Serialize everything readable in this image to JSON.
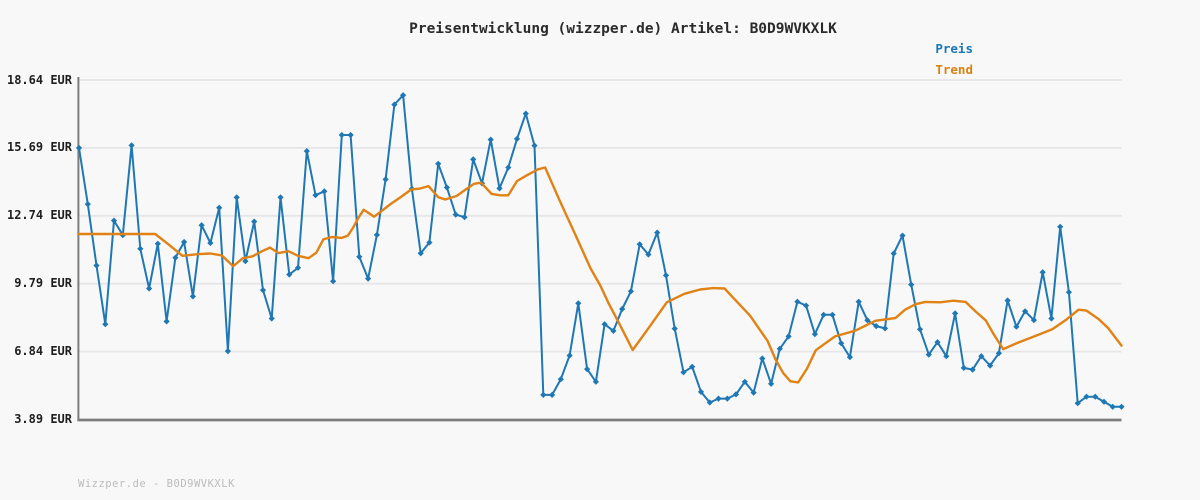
{
  "title": "Preisentwicklung (wizzper.de) Artikel: B0D9WVKXLK",
  "legend": {
    "price_label": "Preis",
    "trend_label": "Trend"
  },
  "footer": "Wizzper.de - B0D9WVKXLK",
  "colors": {
    "price": "#1f77b4",
    "trend": "#e08214",
    "price_text": "#1777b8",
    "trend_text": "#da820e",
    "grid": "#e6e6e8",
    "axis": "#7d7d7d",
    "background": "#f8f8f9"
  },
  "y_axis": {
    "unit": "EUR",
    "tick_labels": [
      "18.64 EUR",
      "15.69 EUR",
      "12.74 EUR",
      "9.79 EUR",
      "6.84 EUR",
      "3.89 EUR"
    ],
    "tick_values": [
      18.64,
      15.69,
      12.74,
      9.79,
      6.84,
      3.89
    ]
  },
  "chart_data": {
    "type": "line",
    "title": "Preisentwicklung (wizzper.de) Artikel: B0D9WVKXLK",
    "xlabel": "",
    "ylabel": "EUR",
    "ylim": [
      3.89,
      18.64
    ],
    "grid": "horizontal",
    "legend_position": "top-right",
    "x_tick_labels_visible": false,
    "series": [
      {
        "name": "Preis",
        "style": "line-with-diamond-markers",
        "values": [
          15.69,
          13.25,
          10.58,
          8.03,
          12.53,
          11.9,
          15.8,
          11.31,
          9.58,
          11.53,
          8.15,
          10.92,
          11.6,
          9.24,
          12.33,
          11.56,
          13.09,
          6.86,
          13.54,
          10.77,
          12.49,
          9.51,
          8.28,
          13.54,
          10.19,
          10.48,
          15.55,
          13.64,
          13.8,
          9.9,
          16.25,
          16.25,
          10.96,
          10.01,
          11.91,
          14.32,
          17.57,
          17.98,
          13.91,
          11.11,
          11.58,
          15.0,
          13.97,
          12.79,
          12.68,
          15.19,
          14.15,
          16.05,
          13.93,
          14.84,
          16.08,
          17.18,
          15.79,
          4.96,
          4.96,
          5.64,
          6.67,
          8.94,
          6.08,
          5.53,
          8.03,
          7.74,
          8.69,
          9.46,
          11.5,
          11.06,
          12.01,
          10.15,
          7.84,
          5.94,
          6.18,
          5.09,
          4.63,
          4.8,
          4.8,
          4.98,
          5.53,
          5.06,
          6.54,
          5.44,
          6.96,
          7.5,
          9.01,
          8.84,
          7.6,
          8.44,
          8.44,
          7.2,
          6.6,
          9.01,
          8.2,
          7.95,
          7.85,
          11.1,
          11.88,
          9.75,
          7.81,
          6.71,
          7.25,
          6.64,
          8.5,
          6.13,
          6.06,
          6.64,
          6.23,
          6.77,
          9.06,
          7.92,
          8.59,
          8.21,
          10.29,
          8.28,
          12.26,
          9.42,
          4.6,
          4.88,
          4.88,
          4.66,
          4.44,
          4.44
        ]
      },
      {
        "name": "Trend",
        "style": "smooth-line",
        "keypoints": [
          [
            0,
            11.95
          ],
          [
            8.7,
            11.95
          ],
          [
            10.2,
            11.5
          ],
          [
            11.8,
            11.0
          ],
          [
            13.5,
            11.07
          ],
          [
            15.0,
            11.1
          ],
          [
            16.3,
            11.02
          ],
          [
            17.6,
            10.55
          ],
          [
            18.7,
            10.9
          ],
          [
            19.8,
            10.98
          ],
          [
            20.9,
            11.2
          ],
          [
            21.8,
            11.36
          ],
          [
            22.8,
            11.12
          ],
          [
            23.9,
            11.2
          ],
          [
            25.0,
            11.0
          ],
          [
            26.2,
            10.9
          ],
          [
            27.1,
            11.14
          ],
          [
            27.9,
            11.72
          ],
          [
            28.9,
            11.82
          ],
          [
            30.0,
            11.78
          ],
          [
            30.7,
            11.88
          ],
          [
            31.3,
            12.23
          ],
          [
            31.9,
            12.66
          ],
          [
            32.5,
            13.0
          ],
          [
            33.7,
            12.7
          ],
          [
            35.5,
            13.23
          ],
          [
            36.9,
            13.6
          ],
          [
            37.9,
            13.88
          ],
          [
            38.9,
            13.92
          ],
          [
            39.9,
            14.03
          ],
          [
            41.0,
            13.55
          ],
          [
            41.8,
            13.45
          ],
          [
            43.1,
            13.6
          ],
          [
            44.2,
            13.9
          ],
          [
            45.1,
            14.13
          ],
          [
            45.9,
            14.18
          ],
          [
            47.1,
            13.69
          ],
          [
            48.1,
            13.63
          ],
          [
            49.0,
            13.63
          ],
          [
            50.0,
            14.25
          ],
          [
            51.3,
            14.54
          ],
          [
            52.4,
            14.76
          ],
          [
            53.2,
            14.84
          ],
          [
            54.9,
            13.37
          ],
          [
            56.5,
            12.05
          ],
          [
            58.4,
            10.45
          ],
          [
            59.5,
            9.71
          ],
          [
            60.4,
            8.98
          ],
          [
            61.8,
            7.96
          ],
          [
            63.2,
            6.91
          ],
          [
            65.2,
            7.96
          ],
          [
            67.1,
            8.98
          ],
          [
            69.1,
            9.35
          ],
          [
            70.9,
            9.54
          ],
          [
            72.4,
            9.6
          ],
          [
            73.7,
            9.58
          ],
          [
            74.8,
            9.13
          ],
          [
            76.6,
            8.4
          ],
          [
            78.6,
            7.3
          ],
          [
            79.5,
            6.5
          ],
          [
            80.4,
            5.9
          ],
          [
            81.2,
            5.55
          ],
          [
            82.1,
            5.5
          ],
          [
            83.1,
            6.1
          ],
          [
            84.1,
            6.9
          ],
          [
            86.3,
            7.5
          ],
          [
            88.6,
            7.75
          ],
          [
            90.9,
            8.18
          ],
          [
            93.2,
            8.3
          ],
          [
            94.3,
            8.66
          ],
          [
            95.5,
            8.9
          ],
          [
            96.6,
            9.0
          ],
          [
            98.3,
            8.98
          ],
          [
            99.8,
            9.05
          ],
          [
            101.2,
            9.0
          ],
          [
            102.3,
            8.6
          ],
          [
            103.5,
            8.2
          ],
          [
            104.4,
            7.6
          ],
          [
            105.5,
            6.95
          ],
          [
            107.2,
            7.23
          ],
          [
            109.2,
            7.52
          ],
          [
            111.1,
            7.81
          ],
          [
            112.6,
            8.2
          ],
          [
            114.1,
            8.66
          ],
          [
            115.0,
            8.62
          ],
          [
            116.4,
            8.25
          ],
          [
            117.5,
            7.85
          ],
          [
            119.0,
            7.1
          ]
        ]
      }
    ]
  }
}
